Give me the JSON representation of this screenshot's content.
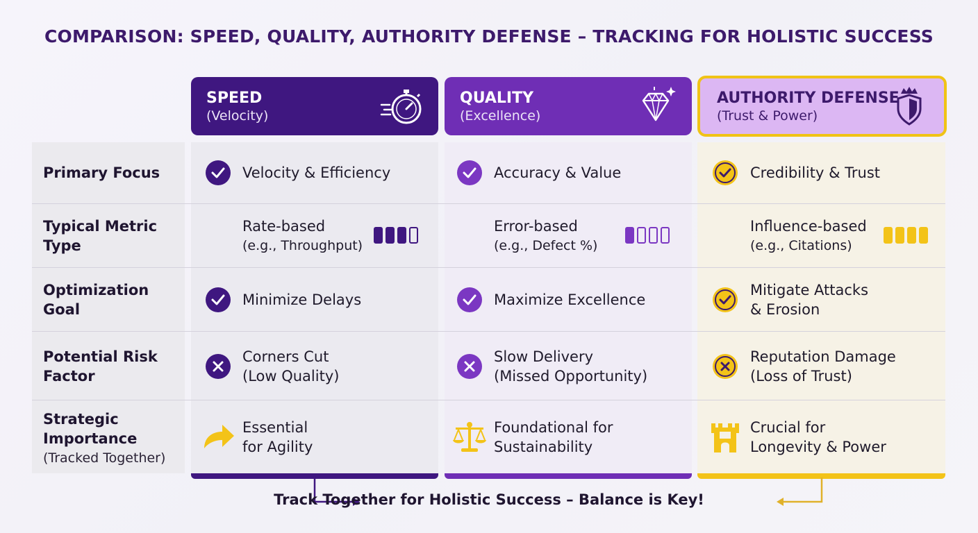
{
  "title": "COMPARISON: SPEED, QUALITY, AUTHORITY DEFENSE – TRACKING FOR HOLISTIC SUCCESS",
  "columns": [
    {
      "name": "SPEED",
      "subtitle": "(Velocity)",
      "icon": "stopwatch-icon",
      "color": "#3f1780"
    },
    {
      "name": "QUALITY",
      "subtitle": "(Excellence)",
      "icon": "diamond-icon",
      "color": "#6f2eb5"
    },
    {
      "name": "AUTHORITY DEFENSE",
      "subtitle": "(Trust & Power)",
      "icon": "shield-crown-icon",
      "color": "#dcb7f3",
      "border": "#f0c316"
    }
  ],
  "rows": {
    "primary_focus": {
      "label": "Primary Focus",
      "cells": [
        "Velocity & Efficiency",
        "Accuracy & Value",
        "Credibility & Trust"
      ],
      "icon": "check-circle-icon"
    },
    "metric_type": {
      "label_line1": "Typical Metric",
      "label_line2": "Type",
      "cells": [
        {
          "line1": "Rate-based",
          "line2": "(e.g., Throughput)",
          "level": 3,
          "max": 4
        },
        {
          "line1": "Error-based",
          "line2": "(e.g., Defect %)",
          "level": 1,
          "max": 4
        },
        {
          "line1": "Influence-based",
          "line2": "(e.g., Citations)",
          "level": 4,
          "max": 4
        }
      ]
    },
    "optimization_goal": {
      "label_line1": "Optimization",
      "label_line2": "Goal",
      "cells": [
        {
          "line1": "Minimize Delays",
          "line2": ""
        },
        {
          "line1": "Maximize Excellence",
          "line2": ""
        },
        {
          "line1": "Mitigate Attacks",
          "line2": "& Erosion"
        }
      ],
      "icon": "check-circle-icon"
    },
    "risk_factor": {
      "label_line1": "Potential Risk",
      "label_line2": "Factor",
      "cells": [
        {
          "line1": "Corners Cut",
          "line2": "(Low Quality)"
        },
        {
          "line1": "Slow Delivery",
          "line2": "(Missed Opportunity)"
        },
        {
          "line1": "Reputation Damage",
          "line2": "(Loss of Trust)"
        }
      ],
      "icon": "x-circle-icon"
    },
    "strategic_importance": {
      "label_line1": "Strategic",
      "label_line2": "Importance",
      "label_note": "(Tracked Together)",
      "cells": [
        {
          "line1": "Essential",
          "line2": "for Agility",
          "icon": "arrow-curve-icon"
        },
        {
          "line1": "Foundational for",
          "line2": "Sustainability",
          "icon": "scales-icon"
        },
        {
          "line1": "Crucial for",
          "line2": "Longevity & Power",
          "icon": "castle-icon"
        }
      ]
    }
  },
  "footer": "Track Together for Holistic Success – Balance is Key!",
  "colors": {
    "title": "#3d1a6b",
    "gold": "#f3c318",
    "purple_dark": "#3f1780",
    "purple_mid": "#7b37c2"
  }
}
